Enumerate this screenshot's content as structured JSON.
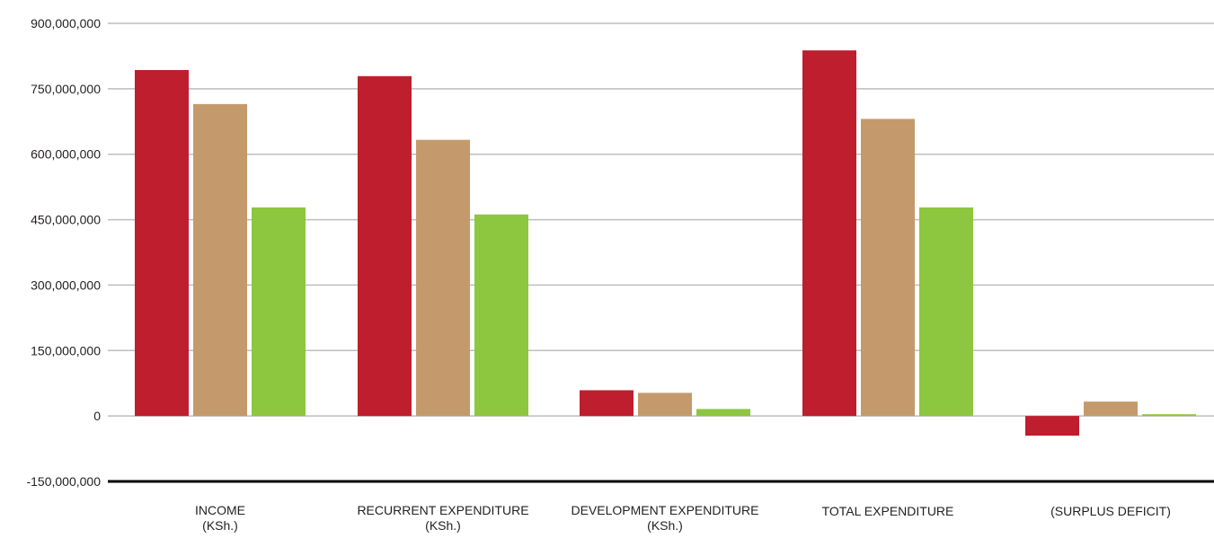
{
  "chart_data": {
    "type": "bar",
    "title": "",
    "xlabel": "",
    "ylabel": "",
    "ylim": [
      -150000000,
      900000000
    ],
    "yticks": [
      -150000000,
      0,
      150000000,
      300000000,
      450000000,
      600000000,
      750000000,
      900000000
    ],
    "ytick_labels": [
      "-150,000,000",
      "0",
      "150,000,000",
      "300,000,000",
      "450,000,000",
      "600,000,000",
      "750,000,000",
      "900,000,000"
    ],
    "grid": true,
    "legend": "none",
    "categories": [
      [
        "INCOME",
        "(KSh.)"
      ],
      [
        "RECURRENT EXPENDITURE",
        "(KSh.)"
      ],
      [
        "DEVELOPMENT EXPENDITURE",
        "(KSh.)"
      ],
      [
        "TOTAL EXPENDITURE"
      ],
      [
        "(SURPLUS DEFICIT)"
      ]
    ],
    "series": [
      {
        "color": "#be1e2d",
        "values": [
          793000000,
          779000000,
          59000000,
          838000000,
          -45000000
        ]
      },
      {
        "color": "#c49a6c",
        "values": [
          715000000,
          633000000,
          53000000,
          681000000,
          33000000
        ]
      },
      {
        "color": "#8dc63f",
        "values": [
          478000000,
          462000000,
          16000000,
          478000000,
          4000000
        ]
      }
    ],
    "colors": {
      "grid": "#bcbec0",
      "axis": "#000000",
      "text": "#231f20"
    }
  }
}
